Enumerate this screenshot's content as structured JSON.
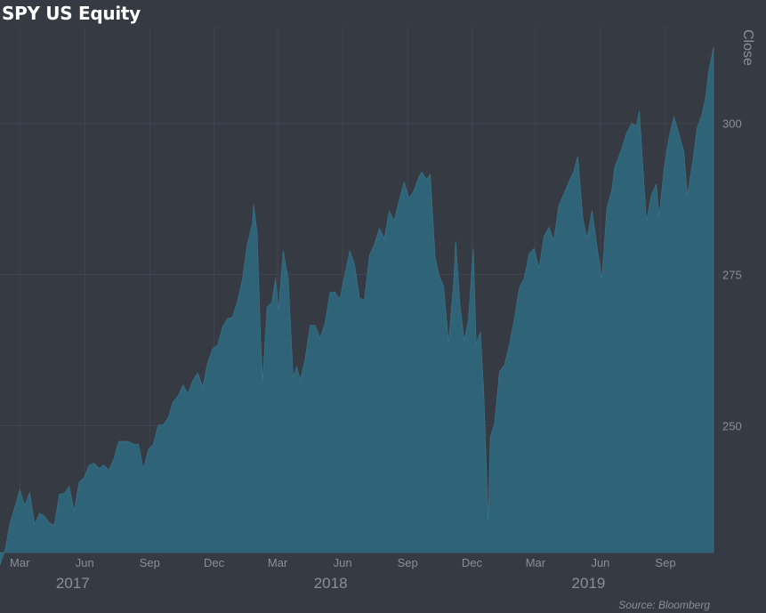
{
  "title": "SPY US Equity",
  "source": "Source: Bloomberg",
  "colors": {
    "background": "#363a42",
    "area": "#2f6478",
    "grid": "#404550",
    "text": "#8a8f98"
  },
  "chart_data": {
    "type": "area",
    "title": "SPY US Equity",
    "ylabel": "Close",
    "xlabel": "",
    "ylim": [
      229,
      316
    ],
    "xlim": [
      "2017-02-01",
      "2019-11-08"
    ],
    "grid": true,
    "y_axis_side": "right",
    "yticks": [
      250,
      275,
      300
    ],
    "x_month_ticks": [
      {
        "date": "2017-03-01",
        "label": "Mar"
      },
      {
        "date": "2017-06-01",
        "label": "Jun"
      },
      {
        "date": "2017-09-01",
        "label": "Sep"
      },
      {
        "date": "2017-12-01",
        "label": "Dec"
      },
      {
        "date": "2018-03-01",
        "label": "Mar"
      },
      {
        "date": "2018-06-01",
        "label": "Jun"
      },
      {
        "date": "2018-09-01",
        "label": "Sep"
      },
      {
        "date": "2018-12-01",
        "label": "Dec"
      },
      {
        "date": "2019-03-01",
        "label": "Mar"
      },
      {
        "date": "2019-06-01",
        "label": "Jun"
      },
      {
        "date": "2019-09-01",
        "label": "Sep"
      }
    ],
    "x_year_labels": [
      {
        "date": "2017-05-15",
        "label": "2017"
      },
      {
        "date": "2018-05-15",
        "label": "2018"
      },
      {
        "date": "2019-05-15",
        "label": "2019"
      }
    ],
    "series": [
      {
        "points": [
          [
            "2017-02-01",
            227.0
          ],
          [
            "2017-02-08",
            229.2
          ],
          [
            "2017-02-15",
            233.8
          ],
          [
            "2017-02-22",
            236.5
          ],
          [
            "2017-03-01",
            239.4
          ],
          [
            "2017-03-08",
            236.8
          ],
          [
            "2017-03-15",
            238.9
          ],
          [
            "2017-03-22",
            233.7
          ],
          [
            "2017-03-29",
            235.5
          ],
          [
            "2017-04-05",
            235.0
          ],
          [
            "2017-04-12",
            233.9
          ],
          [
            "2017-04-19",
            233.5
          ],
          [
            "2017-04-26",
            238.6
          ],
          [
            "2017-05-03",
            238.8
          ],
          [
            "2017-05-10",
            239.9
          ],
          [
            "2017-05-17",
            235.8
          ],
          [
            "2017-05-24",
            240.6
          ],
          [
            "2017-05-31",
            241.4
          ],
          [
            "2017-06-07",
            243.4
          ],
          [
            "2017-06-14",
            243.8
          ],
          [
            "2017-06-21",
            242.9
          ],
          [
            "2017-06-28",
            243.5
          ],
          [
            "2017-07-05",
            242.6
          ],
          [
            "2017-07-12",
            244.4
          ],
          [
            "2017-07-19",
            247.4
          ],
          [
            "2017-07-26",
            247.4
          ],
          [
            "2017-08-02",
            247.4
          ],
          [
            "2017-08-09",
            246.9
          ],
          [
            "2017-08-16",
            246.9
          ],
          [
            "2017-08-23",
            242.8
          ],
          [
            "2017-08-30",
            246.0
          ],
          [
            "2017-09-06",
            246.9
          ],
          [
            "2017-09-13",
            250.1
          ],
          [
            "2017-09-20",
            250.1
          ],
          [
            "2017-09-27",
            251.3
          ],
          [
            "2017-10-04",
            253.9
          ],
          [
            "2017-10-11",
            254.9
          ],
          [
            "2017-10-18",
            256.7
          ],
          [
            "2017-10-25",
            255.3
          ],
          [
            "2017-11-01",
            257.5
          ],
          [
            "2017-11-08",
            258.7
          ],
          [
            "2017-11-15",
            256.4
          ],
          [
            "2017-11-22",
            260.4
          ],
          [
            "2017-11-29",
            262.7
          ],
          [
            "2017-12-06",
            263.3
          ],
          [
            "2017-12-13",
            266.3
          ],
          [
            "2017-12-20",
            267.7
          ],
          [
            "2017-12-27",
            267.9
          ],
          [
            "2018-01-03",
            270.5
          ],
          [
            "2018-01-10",
            274.1
          ],
          [
            "2018-01-17",
            280.0
          ],
          [
            "2018-01-24",
            283.3
          ],
          [
            "2018-01-26",
            286.6
          ],
          [
            "2018-01-31",
            281.9
          ],
          [
            "2018-02-05",
            263.9
          ],
          [
            "2018-02-08",
            257.6
          ],
          [
            "2018-02-14",
            269.6
          ],
          [
            "2018-02-21",
            270.4
          ],
          [
            "2018-02-26",
            274.4
          ],
          [
            "2018-03-02",
            269.1
          ],
          [
            "2018-03-09",
            278.9
          ],
          [
            "2018-03-16",
            274.2
          ],
          [
            "2018-03-23",
            258.0
          ],
          [
            "2018-03-28",
            259.8
          ],
          [
            "2018-04-02",
            257.5
          ],
          [
            "2018-04-09",
            261.0
          ],
          [
            "2018-04-16",
            266.6
          ],
          [
            "2018-04-23",
            266.6
          ],
          [
            "2018-04-30",
            264.5
          ],
          [
            "2018-05-07",
            266.9
          ],
          [
            "2018-05-14",
            272.0
          ],
          [
            "2018-05-21",
            272.1
          ],
          [
            "2018-05-28",
            270.9
          ],
          [
            "2018-06-04",
            274.9
          ],
          [
            "2018-06-11",
            278.9
          ],
          [
            "2018-06-18",
            276.6
          ],
          [
            "2018-06-25",
            271.0
          ],
          [
            "2018-07-02",
            270.9
          ],
          [
            "2018-07-09",
            278.2
          ],
          [
            "2018-07-16",
            280.0
          ],
          [
            "2018-07-23",
            282.6
          ],
          [
            "2018-07-30",
            281.0
          ],
          [
            "2018-08-06",
            285.5
          ],
          [
            "2018-08-13",
            283.9
          ],
          [
            "2018-08-20",
            287.2
          ],
          [
            "2018-08-27",
            290.3
          ],
          [
            "2018-09-03",
            287.6
          ],
          [
            "2018-09-10",
            288.9
          ],
          [
            "2018-09-17",
            291.2
          ],
          [
            "2018-09-21",
            291.9
          ],
          [
            "2018-09-28",
            290.7
          ],
          [
            "2018-10-03",
            291.6
          ],
          [
            "2018-10-10",
            278.0
          ],
          [
            "2018-10-15",
            275.0
          ],
          [
            "2018-10-22",
            273.0
          ],
          [
            "2018-10-29",
            263.7
          ],
          [
            "2018-11-05",
            273.4
          ],
          [
            "2018-11-08",
            280.5
          ],
          [
            "2018-11-14",
            270.2
          ],
          [
            "2018-11-20",
            264.1
          ],
          [
            "2018-11-26",
            267.5
          ],
          [
            "2018-12-03",
            279.3
          ],
          [
            "2018-12-07",
            263.6
          ],
          [
            "2018-12-13",
            265.5
          ],
          [
            "2018-12-18",
            255.1
          ],
          [
            "2018-12-24",
            234.3
          ],
          [
            "2018-12-27",
            248.1
          ],
          [
            "2019-01-02",
            250.2
          ],
          [
            "2019-01-09",
            258.9
          ],
          [
            "2019-01-16",
            260.0
          ],
          [
            "2019-01-23",
            263.4
          ],
          [
            "2019-01-30",
            267.6
          ],
          [
            "2019-02-06",
            272.7
          ],
          [
            "2019-02-13",
            274.4
          ],
          [
            "2019-02-20",
            278.4
          ],
          [
            "2019-02-27",
            279.3
          ],
          [
            "2019-03-06",
            276.0
          ],
          [
            "2019-03-13",
            281.3
          ],
          [
            "2019-03-20",
            282.8
          ],
          [
            "2019-03-27",
            280.7
          ],
          [
            "2019-04-03",
            286.4
          ],
          [
            "2019-04-10",
            288.3
          ],
          [
            "2019-04-17",
            290.2
          ],
          [
            "2019-04-24",
            292.0
          ],
          [
            "2019-04-30",
            294.6
          ],
          [
            "2019-05-07",
            284.3
          ],
          [
            "2019-05-13",
            280.9
          ],
          [
            "2019-05-20",
            285.6
          ],
          [
            "2019-05-28",
            278.9
          ],
          [
            "2019-06-03",
            274.3
          ],
          [
            "2019-06-10",
            286.0
          ],
          [
            "2019-06-17",
            288.9
          ],
          [
            "2019-06-21",
            292.7
          ],
          [
            "2019-07-01",
            295.8
          ],
          [
            "2019-07-08",
            298.4
          ],
          [
            "2019-07-15",
            300.0
          ],
          [
            "2019-07-22",
            299.6
          ],
          [
            "2019-07-26",
            302.0
          ],
          [
            "2019-08-05",
            283.8
          ],
          [
            "2019-08-12",
            288.1
          ],
          [
            "2019-08-19",
            290.0
          ],
          [
            "2019-08-23",
            284.7
          ],
          [
            "2019-08-30",
            292.5
          ],
          [
            "2019-09-06",
            297.7
          ],
          [
            "2019-09-13",
            301.1
          ],
          [
            "2019-09-20",
            298.3
          ],
          [
            "2019-09-27",
            295.4
          ],
          [
            "2019-10-02",
            288.1
          ],
          [
            "2019-10-09",
            293.2
          ],
          [
            "2019-10-16",
            299.3
          ],
          [
            "2019-10-23",
            301.6
          ],
          [
            "2019-10-28",
            304.5
          ],
          [
            "2019-11-01",
            308.4
          ],
          [
            "2019-11-05",
            310.8
          ],
          [
            "2019-11-08",
            312.7
          ]
        ]
      }
    ]
  }
}
